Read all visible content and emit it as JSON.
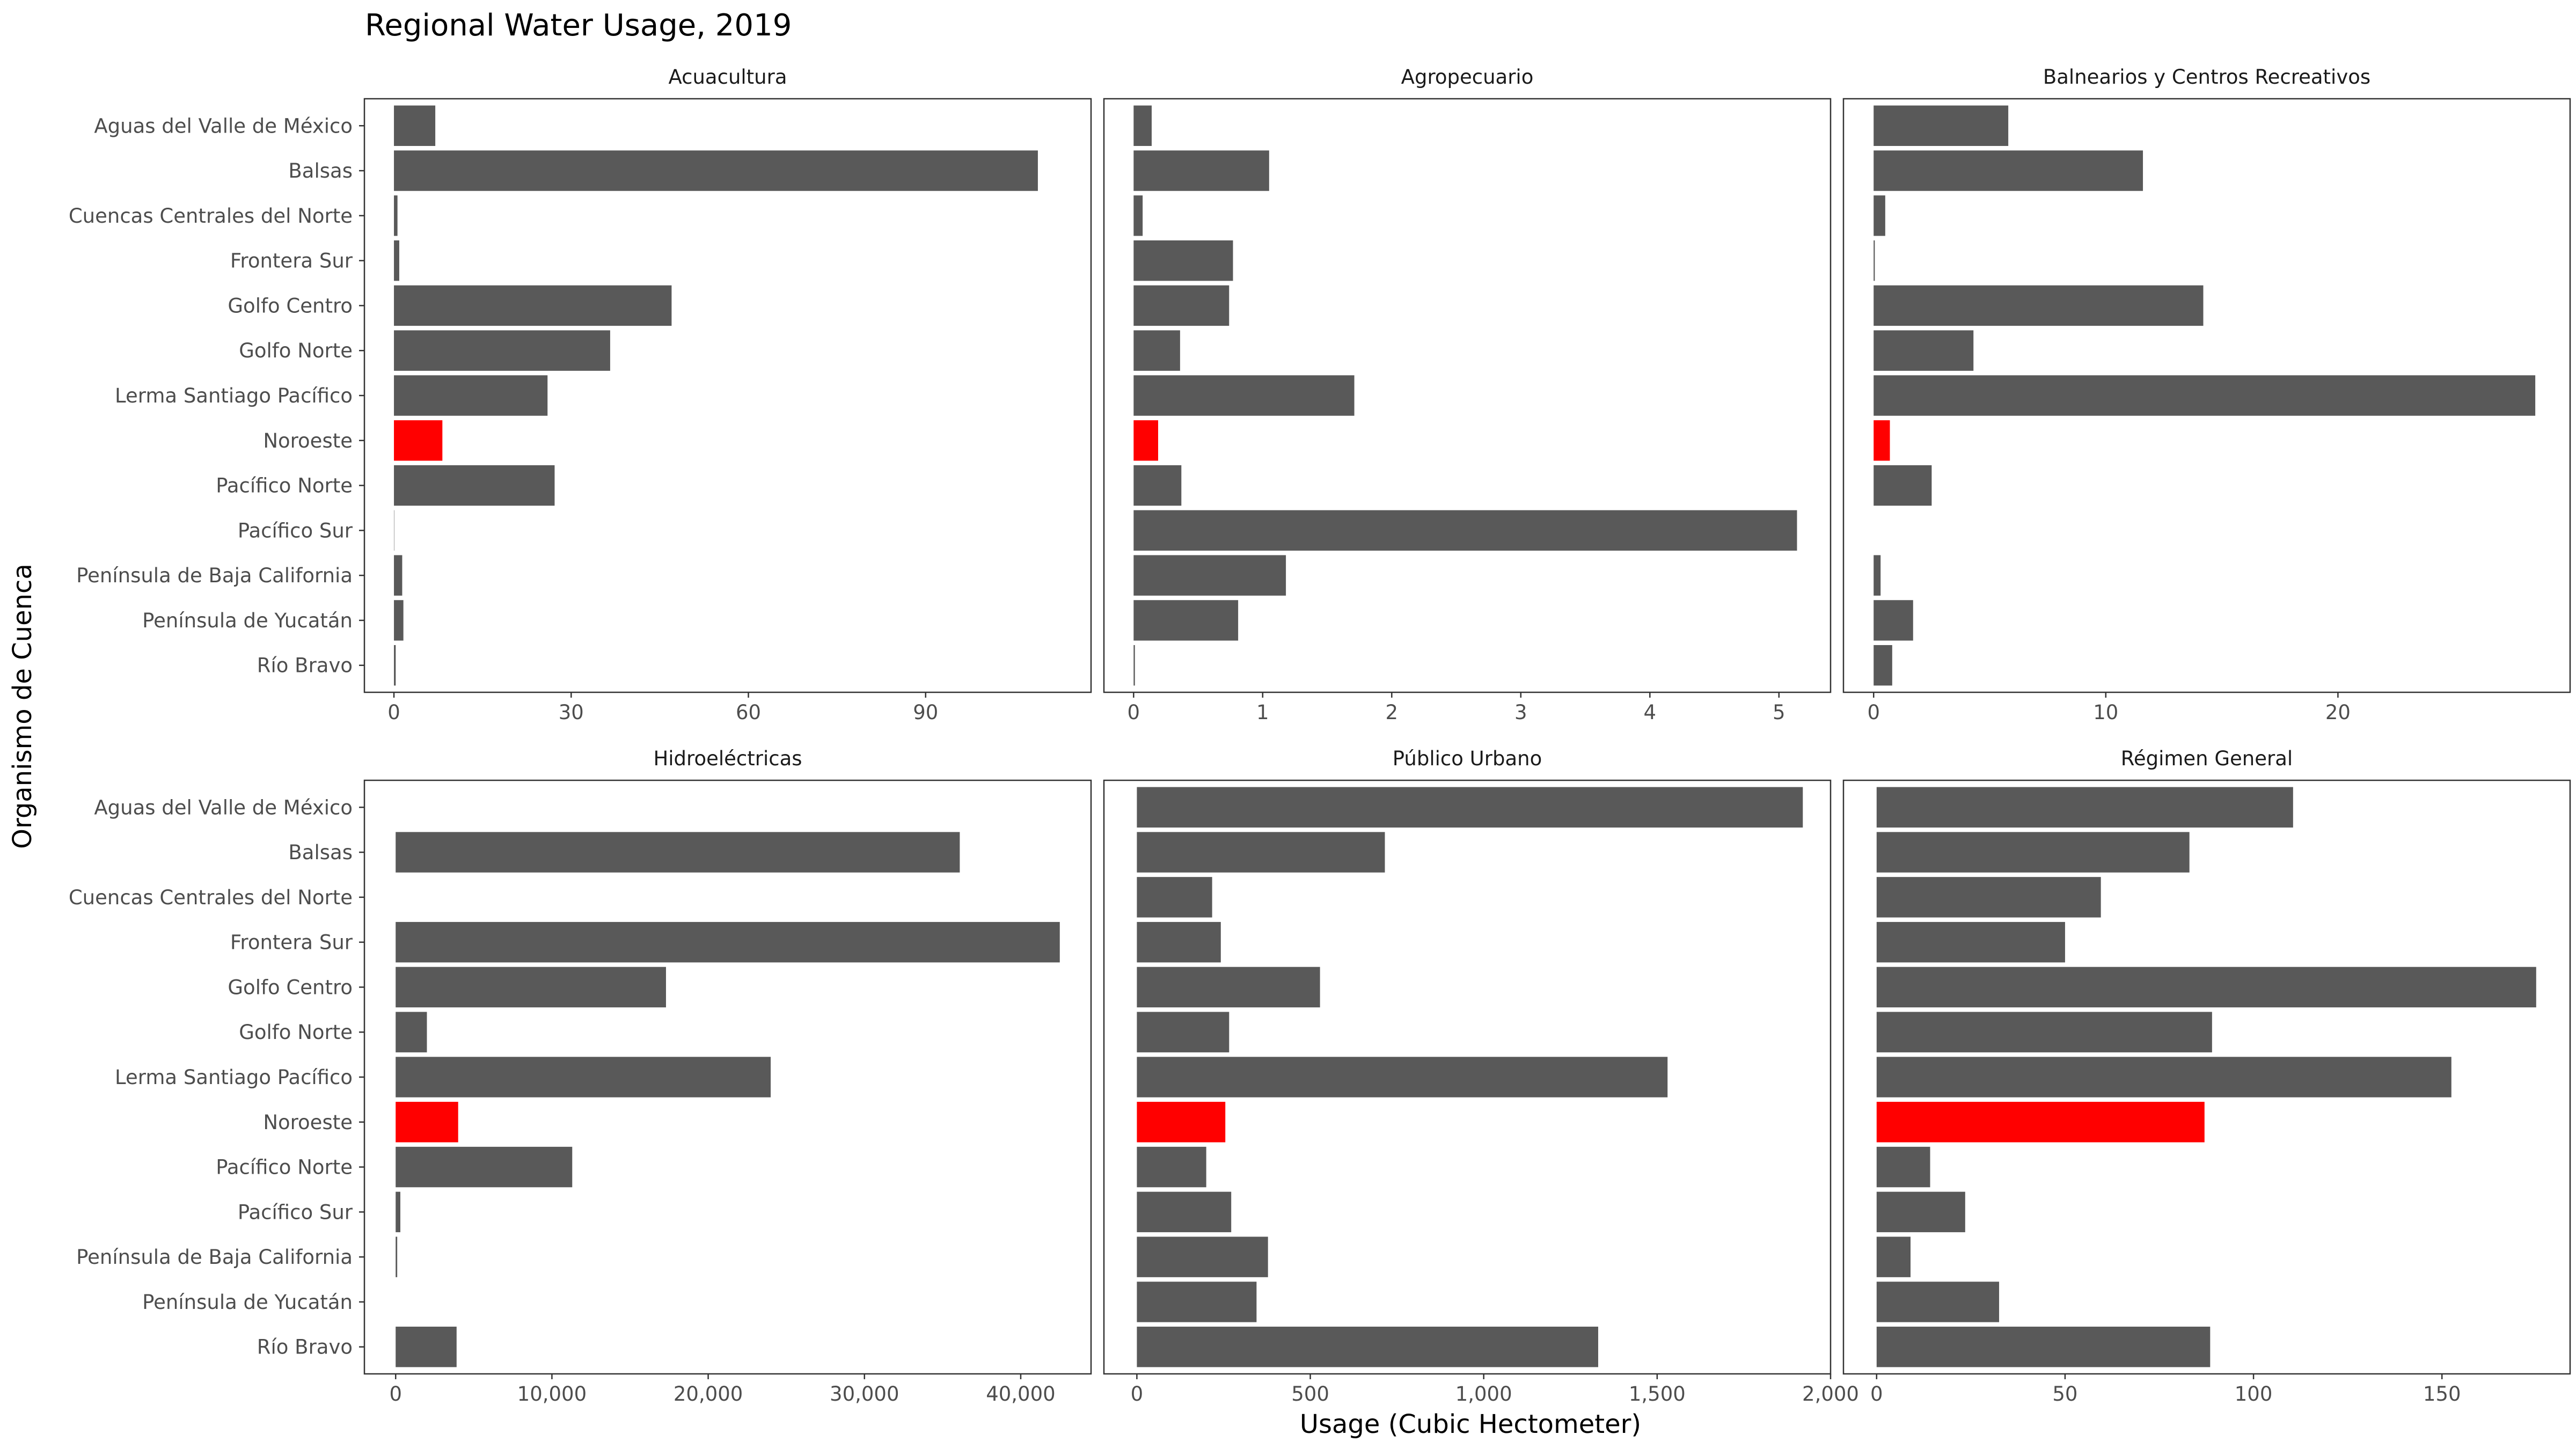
{
  "chart_data": {
    "type": "bar",
    "orientation": "horizontal",
    "title": "Regional Water Usage, 2019",
    "xlabel": "Usage (Cubic Hectometer)",
    "ylabel": "Organismo de Cuenca",
    "highlight_category": "Noroeste",
    "colors": {
      "bar": "#595959",
      "highlight": "#ff0000"
    },
    "grid": false,
    "categories": [
      "Río Bravo",
      "Península de Yucatán",
      "Península de Baja California",
      "Pacífico Sur",
      "Pacífico Norte",
      "Noroeste",
      "Lerma Santiago Pacífico",
      "Golfo Norte",
      "Golfo Centro",
      "Frontera Sur",
      "Cuencas Centrales del Norte",
      "Balsas",
      "Aguas del Valle de México"
    ],
    "facets": [
      {
        "name": "Acuacultura",
        "xlim": [
          -5,
          118
        ],
        "ticks": [
          0,
          30,
          60,
          90
        ],
        "tick_labels": [
          "0",
          "30",
          "60",
          "90"
        ],
        "values": [
          0.3,
          1.6,
          1.4,
          0.05,
          27.2,
          8.2,
          26,
          36.6,
          47,
          0.9,
          0.6,
          109,
          7
        ]
      },
      {
        "name": "Agropecuario",
        "xlim": [
          -0.23,
          5.4
        ],
        "ticks": [
          0,
          1,
          2,
          3,
          4,
          5
        ],
        "tick_labels": [
          "0",
          "1",
          "2",
          "3",
          "4",
          "5"
        ],
        "values": [
          0.01,
          0.81,
          1.18,
          5.14,
          0.37,
          0.19,
          1.71,
          0.36,
          0.74,
          0.77,
          0.07,
          1.05,
          0.14
        ]
      },
      {
        "name": "Balnearios y Centros Recreativos",
        "xlim": [
          -1.3,
          30
        ],
        "ticks": [
          0,
          10,
          20
        ],
        "tick_labels": [
          "0",
          "10",
          "20"
        ],
        "values": [
          0.8,
          1.7,
          0.3,
          0,
          2.5,
          0.7,
          28.5,
          4.3,
          14.2,
          0.05,
          0.5,
          11.6,
          5.8
        ]
      },
      {
        "name": "Hidroeléctricas",
        "xlim": [
          -2000,
          44500
        ],
        "ticks": [
          0,
          10000,
          20000,
          30000,
          40000
        ],
        "tick_labels": [
          "0",
          "10,000",
          "20,000",
          "30,000",
          "40,000"
        ],
        "values": [
          3900,
          0,
          100,
          300,
          11300,
          4000,
          24000,
          2000,
          17300,
          42500,
          0,
          36100,
          0
        ]
      },
      {
        "name": "Público Urbano",
        "xlim": [
          -95,
          2000
        ],
        "ticks": [
          0,
          500,
          1000,
          1500,
          2000
        ],
        "tick_labels": [
          "0",
          "500",
          "1,000",
          "1,500",
          "2,000"
        ],
        "values": [
          1330,
          345,
          378,
          272,
          200,
          255,
          1530,
          266,
          528,
          242,
          217,
          715,
          1920
        ]
      },
      {
        "name": "Régimen General",
        "xlim": [
          -8.8,
          184
        ],
        "ticks": [
          0,
          50,
          100,
          150
        ],
        "tick_labels": [
          "0",
          "50",
          "100",
          "150"
        ],
        "values": [
          88.5,
          32.5,
          9,
          23.5,
          14.2,
          87,
          152.5,
          89,
          175,
          50,
          59.5,
          83,
          110.5
        ]
      }
    ]
  }
}
